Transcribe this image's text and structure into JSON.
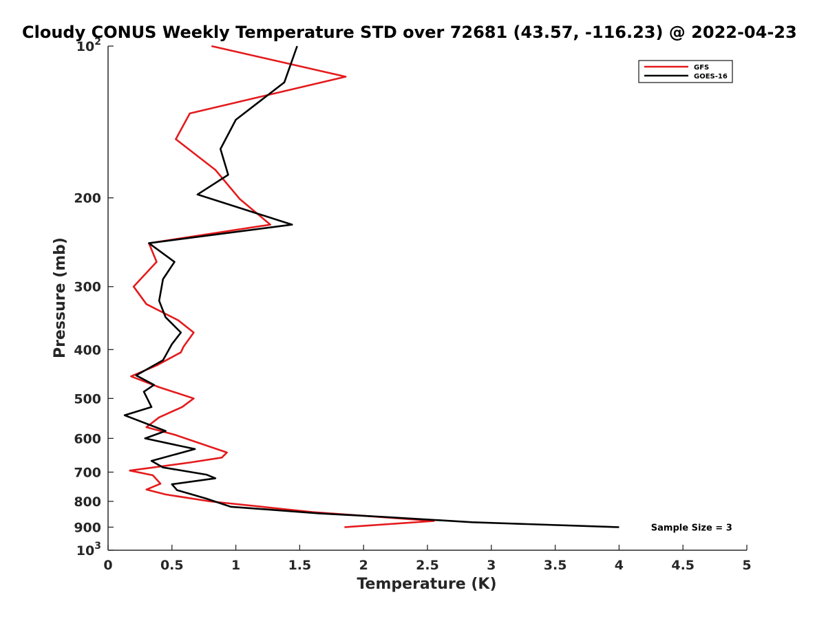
{
  "chart_data": {
    "type": "line",
    "title": "Cloudy CONUS Weekly Temperature STD over 72681 (43.57, -116.23) @ 2022-04-23",
    "xlabel": "Temperature (K)",
    "ylabel": "Pressure (mb)",
    "xlim": [
      0,
      5
    ],
    "ylim": [
      100,
      1000
    ],
    "y_scale": "log",
    "y_reversed": true,
    "xticks": [
      0,
      0.5,
      1,
      1.5,
      2,
      2.5,
      3,
      3.5,
      4,
      4.5,
      5
    ],
    "xtick_labels": [
      "0",
      "0.5",
      "1",
      "1.5",
      "2",
      "2.5",
      "3",
      "3.5",
      "4",
      "4.5",
      "5"
    ],
    "yticks": [
      100,
      200,
      300,
      400,
      500,
      600,
      700,
      800,
      900,
      1000
    ],
    "ytick_labels": [
      "10²",
      "200",
      "300",
      "400",
      "500",
      "600",
      "700",
      "800",
      "900",
      "10³"
    ],
    "grid": false,
    "legend_position": "top-right",
    "series": [
      {
        "name": "GFS",
        "color": "#e41a1c",
        "points": [
          [
            0.81,
            100
          ],
          [
            1.86,
            115
          ],
          [
            0.64,
            136
          ],
          [
            0.53,
            153
          ],
          [
            0.84,
            176
          ],
          [
            1.03,
            201
          ],
          [
            1.27,
            226
          ],
          [
            0.32,
            246
          ],
          [
            0.38,
            268
          ],
          [
            0.2,
            300
          ],
          [
            0.3,
            325
          ],
          [
            0.55,
            350
          ],
          [
            0.67,
            370
          ],
          [
            0.59,
            395
          ],
          [
            0.57,
            405
          ],
          [
            0.38,
            430
          ],
          [
            0.18,
            452
          ],
          [
            0.4,
            475
          ],
          [
            0.67,
            500
          ],
          [
            0.58,
            520
          ],
          [
            0.4,
            545
          ],
          [
            0.3,
            570
          ],
          [
            0.52,
            590
          ],
          [
            0.93,
            640
          ],
          [
            0.89,
            655
          ],
          [
            0.64,
            670
          ],
          [
            0.17,
            695
          ],
          [
            0.35,
            710
          ],
          [
            0.41,
            738
          ],
          [
            0.3,
            758
          ],
          [
            0.45,
            775
          ],
          [
            0.8,
            800
          ],
          [
            1.6,
            840
          ],
          [
            2.55,
            875
          ],
          [
            1.85,
            900
          ]
        ]
      },
      {
        "name": "GOES-16",
        "color": "#000000",
        "points": [
          [
            1.48,
            100
          ],
          [
            1.38,
            118
          ],
          [
            1.0,
            140
          ],
          [
            0.88,
            160
          ],
          [
            0.94,
            180
          ],
          [
            0.7,
            197
          ],
          [
            1.44,
            226
          ],
          [
            0.32,
            246
          ],
          [
            0.52,
            268
          ],
          [
            0.43,
            290
          ],
          [
            0.4,
            320
          ],
          [
            0.45,
            345
          ],
          [
            0.57,
            370
          ],
          [
            0.5,
            390
          ],
          [
            0.43,
            420
          ],
          [
            0.22,
            450
          ],
          [
            0.36,
            470
          ],
          [
            0.28,
            485
          ],
          [
            0.34,
            520
          ],
          [
            0.13,
            540
          ],
          [
            0.45,
            580
          ],
          [
            0.29,
            600
          ],
          [
            0.68,
            630
          ],
          [
            0.34,
            665
          ],
          [
            0.43,
            685
          ],
          [
            0.77,
            708
          ],
          [
            0.84,
            720
          ],
          [
            0.5,
            740
          ],
          [
            0.54,
            760
          ],
          [
            0.77,
            790
          ],
          [
            0.96,
            820
          ],
          [
            1.65,
            845
          ],
          [
            2.2,
            860
          ],
          [
            2.85,
            880
          ],
          [
            4.0,
            900
          ]
        ]
      }
    ],
    "annotations": [
      {
        "text": "Sample Size = 3",
        "x": 4.25,
        "y": 900
      }
    ]
  }
}
